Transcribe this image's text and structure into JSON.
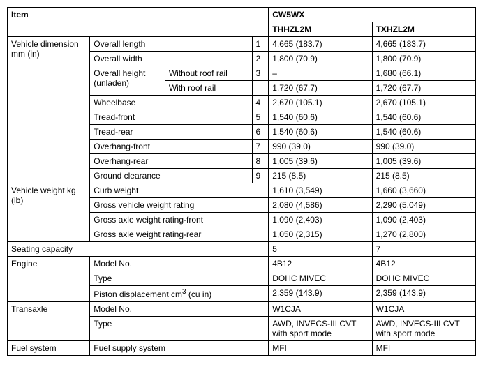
{
  "header": {
    "item": "Item",
    "model_group": "CW5WX",
    "col1": "THHZL2M",
    "col2": "TXHZL2M"
  },
  "dim": {
    "cat": "Vehicle dimension mm (in)",
    "length": {
      "label": "Overall length",
      "n": "1",
      "v1": "4,665 (183.7)",
      "v2": "4,665 (183.7)"
    },
    "width": {
      "label": "Overall width",
      "n": "2",
      "v1": "1,800 (70.9)",
      "v2": "1,800 (70.9)"
    },
    "height": {
      "label": "Overall height (unladen)",
      "without": {
        "label": "Without roof rail",
        "n": "3",
        "v1": "–",
        "v2": "1,680 (66.1)"
      },
      "with": {
        "label": "With roof rail",
        "v1": "1,720 (67.7)",
        "v2": "1,720 (67.7)"
      }
    },
    "wheelbase": {
      "label": "Wheelbase",
      "n": "4",
      "v1": "2,670 (105.1)",
      "v2": "2,670 (105.1)"
    },
    "treadf": {
      "label": "Tread-front",
      "n": "5",
      "v1": "1,540 (60.6)",
      "v2": "1,540 (60.6)"
    },
    "treadr": {
      "label": "Tread-rear",
      "n": "6",
      "v1": "1,540 (60.6)",
      "v2": "1,540 (60.6)"
    },
    "overf": {
      "label": "Overhang-front",
      "n": "7",
      "v1": "990 (39.0)",
      "v2": "990 (39.0)"
    },
    "overr": {
      "label": "Overhang-rear",
      "n": "8",
      "v1": "1,005 (39.6)",
      "v2": "1,005 (39.6)"
    },
    "gc": {
      "label": "Ground clearance",
      "n": "9",
      "v1": "215 (8.5)",
      "v2": "215 (8.5)"
    }
  },
  "weight": {
    "cat": "Vehicle weight kg (lb)",
    "curb": {
      "label": "Curb weight",
      "v1": "1,610 (3,549)",
      "v2": "1,660 (3,660)"
    },
    "gvwr": {
      "label": "Gross vehicle weight rating",
      "v1": "2,080 (4,586)",
      "v2": "2,290 (5,049)"
    },
    "gawrf": {
      "label": "Gross axle weight rating-front",
      "v1": "1,090 (2,403)",
      "v2": "1,090 (2,403)"
    },
    "gawrr": {
      "label": "Gross axle weight rating-rear",
      "v1": "1,050 (2,315)",
      "v2": "1,270 (2,800)"
    }
  },
  "seating": {
    "cat": "Seating capacity",
    "v1": "5",
    "v2": "7"
  },
  "engine": {
    "cat": "Engine",
    "model": {
      "label": "Model No.",
      "v1": "4B12",
      "v2": "4B12"
    },
    "type": {
      "label": "Type",
      "v1": "DOHC MIVEC",
      "v2": "DOHC MIVEC"
    },
    "disp": {
      "prefix": "Piston displacement cm",
      "sup": "3",
      "suffix": " (cu in)",
      "v1": "2,359 (143.9)",
      "v2": "2,359 (143.9)"
    }
  },
  "transaxle": {
    "cat": "Transaxle",
    "model": {
      "label": "Model No.",
      "v1": "W1CJA",
      "v2": "W1CJA"
    },
    "type": {
      "label": "Type",
      "v1": "AWD, INVECS-III CVT with sport mode",
      "v2": "AWD, INVECS-III CVT with sport mode"
    }
  },
  "fuel": {
    "cat": "Fuel system",
    "supply": {
      "label": "Fuel supply system",
      "v1": "MFI",
      "v2": "MFI"
    }
  }
}
